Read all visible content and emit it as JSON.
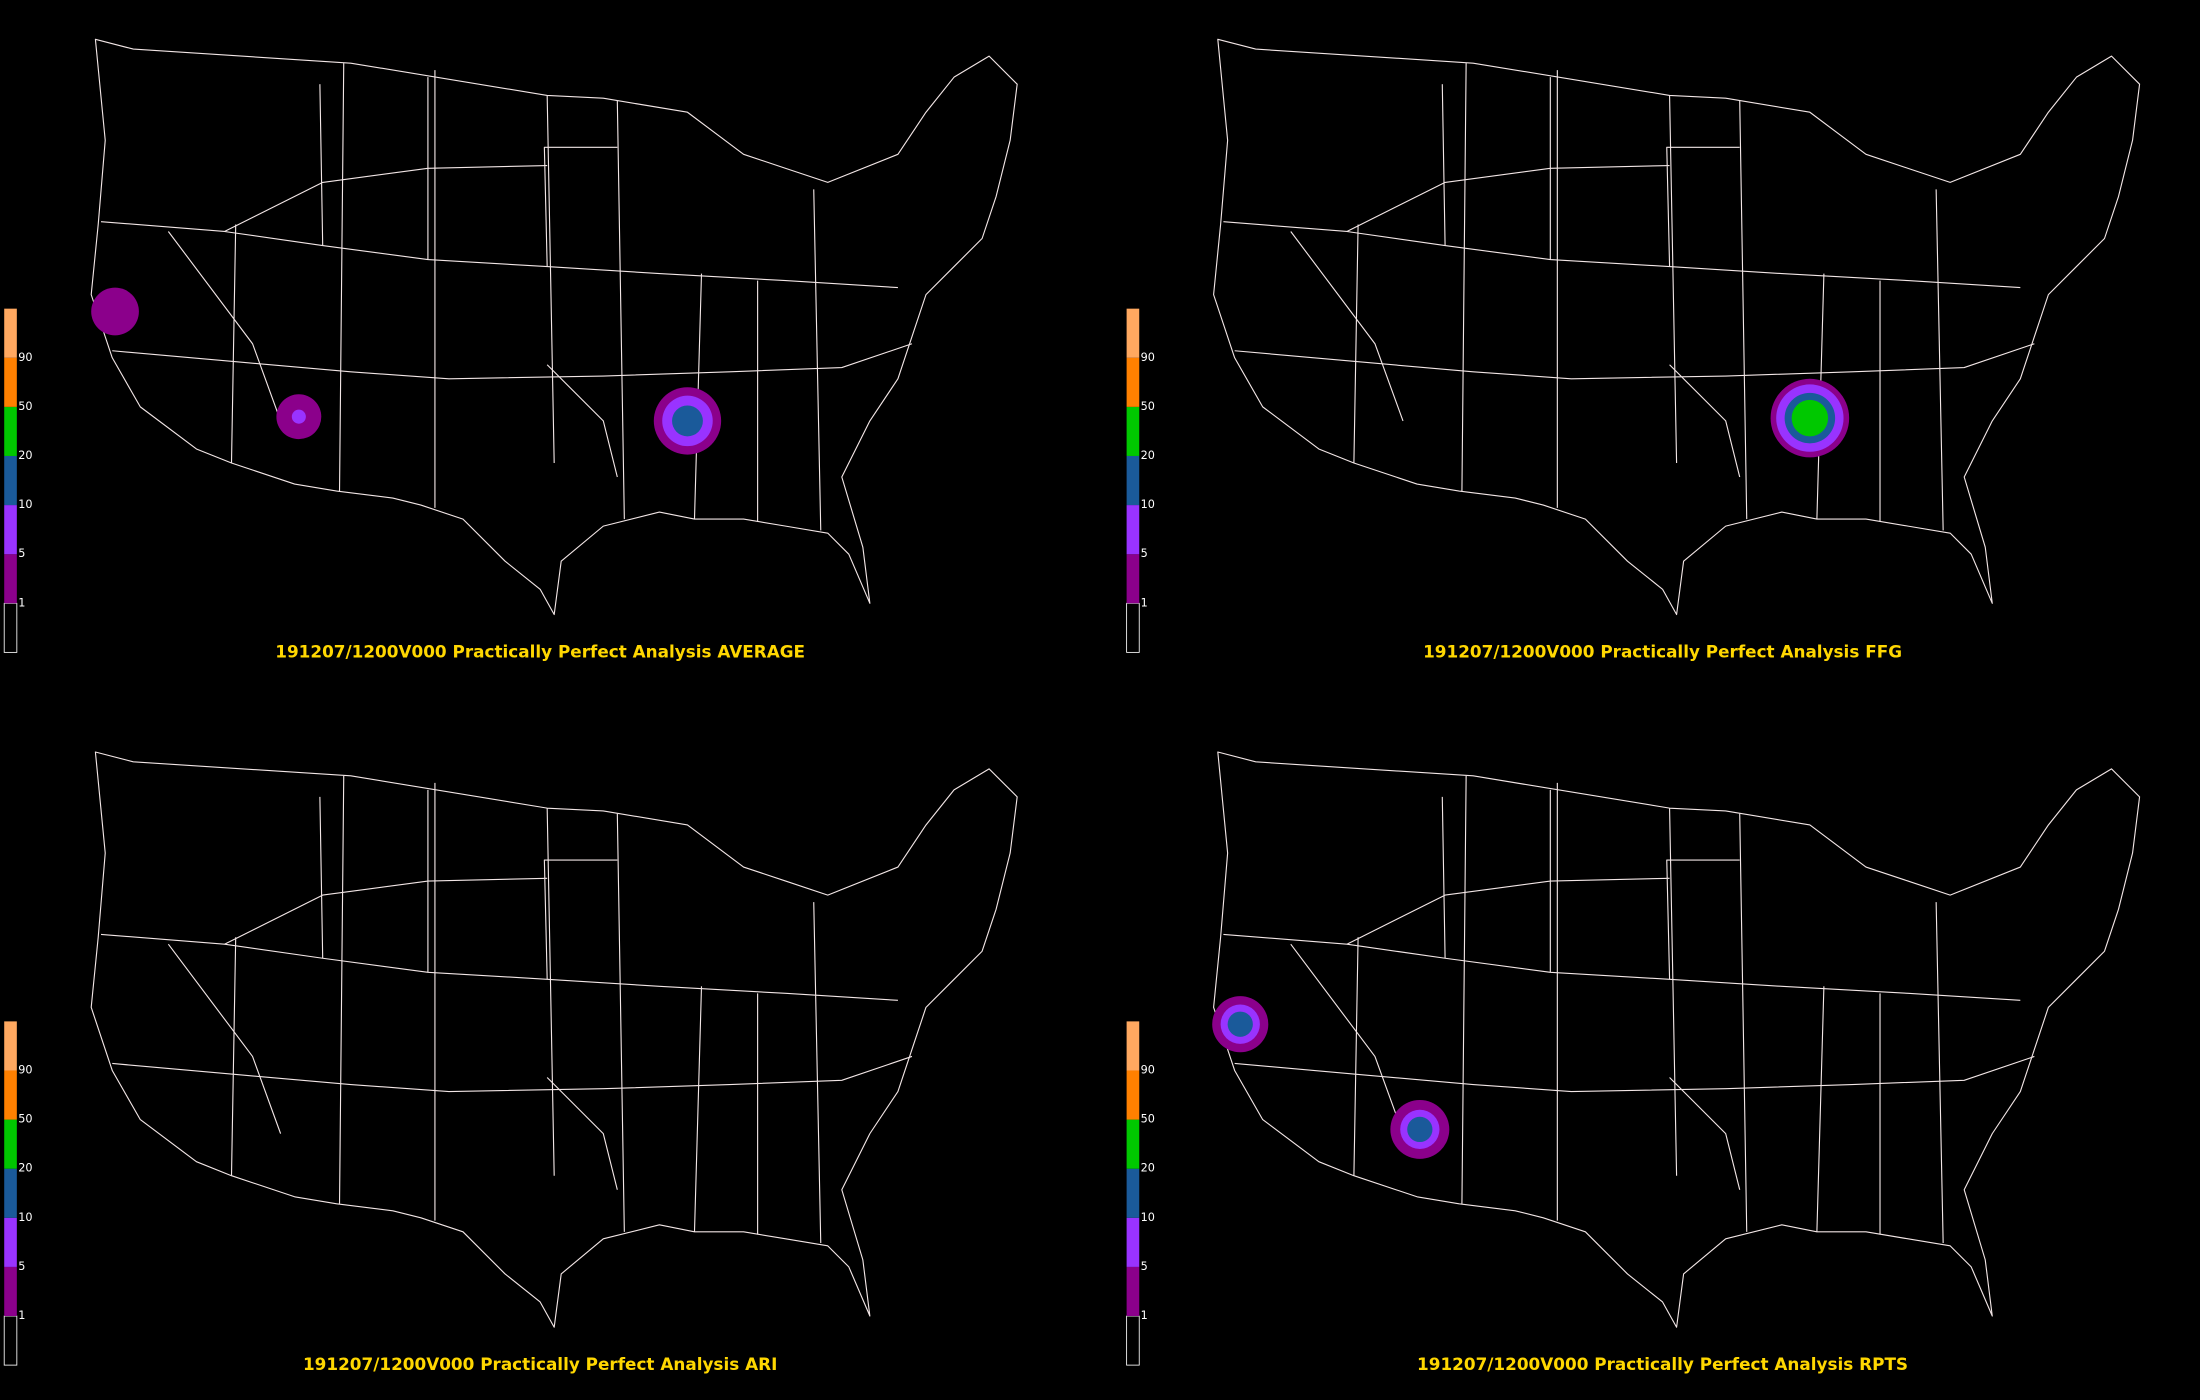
{
  "panels": [
    {
      "title": "191207/1200V000 Practically Perfect Analysis AVERAGE"
    },
    {
      "title": "191207/1200V000 Practically Perfect Analysis FFG"
    },
    {
      "title": "191207/1200V000 Practically Perfect Analysis ARI"
    },
    {
      "title": "191207/1200V000 Practically Perfect Analysis RPTS"
    }
  ],
  "colorbar": {
    "levels": [
      1,
      5,
      10,
      20,
      50,
      90
    ],
    "colors": [
      "#000000",
      "#8b008b",
      "#9933ff",
      "#1a5a9a",
      "#00c800",
      "#ff8000",
      "#ffa860"
    ]
  }
}
